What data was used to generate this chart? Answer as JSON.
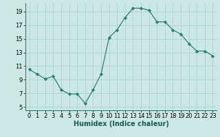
{
  "x": [
    0,
    1,
    2,
    3,
    4,
    5,
    6,
    7,
    8,
    9,
    10,
    11,
    12,
    13,
    14,
    15,
    16,
    17,
    18,
    19,
    20,
    21,
    22,
    23
  ],
  "y": [
    10.5,
    9.8,
    9.1,
    9.5,
    7.5,
    6.9,
    6.9,
    5.5,
    7.5,
    9.8,
    15.2,
    16.3,
    18.1,
    19.5,
    19.5,
    19.2,
    17.5,
    17.5,
    16.3,
    15.7,
    14.3,
    13.2,
    13.2,
    12.5
  ],
  "line_color": "#2e7d6e",
  "marker": "D",
  "marker_size": 2.2,
  "bg_color": "#cce8e5",
  "grid_color": "#aad4cf",
  "xlabel": "Humidex (Indice chaleur)",
  "xlim": [
    -0.5,
    23.5
  ],
  "ylim": [
    4.5,
    20.2
  ],
  "yticks": [
    5,
    7,
    9,
    11,
    13,
    15,
    17,
    19
  ],
  "xticks": [
    0,
    1,
    2,
    3,
    4,
    5,
    6,
    7,
    8,
    9,
    10,
    11,
    12,
    13,
    14,
    15,
    16,
    17,
    18,
    19,
    20,
    21,
    22,
    23
  ],
  "xlabel_fontsize": 7,
  "tick_fontsize": 6
}
